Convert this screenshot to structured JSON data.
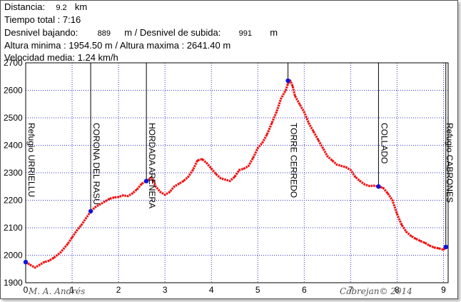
{
  "stats": {
    "distance_label": "Distancia:",
    "distance_value": "9.2",
    "distance_unit": "km",
    "time_text": "Tiempo total : 7:16",
    "desnivel_bajando_label": "Desnivel bajando:",
    "desnivel_bajando_value": "889",
    "desnivel_subida_label": "m / Desnivel de subida:",
    "desnivel_subida_value": "991",
    "desnivel_subida_unit": "m",
    "altitude_text": "Altura minima : 1954.50 m / Altura maxima : 2641.40 m",
    "speed_text": "Velocidad media: 1.24 km/h"
  },
  "credits": {
    "left": "M. A. Andrés",
    "right": "Cabrejan© 2014"
  },
  "colors": {
    "profile": "#ee1111",
    "waypoint": "#1111dd",
    "grid": "#3333cc",
    "axis": "#000000"
  },
  "chart_data": {
    "type": "line",
    "xlim": [
      0,
      9.1
    ],
    "ylim": [
      1900,
      2700
    ],
    "xticks": [
      0,
      1,
      2,
      3,
      4,
      5,
      6,
      7,
      8,
      9
    ],
    "yticks": [
      1900,
      2000,
      2100,
      2200,
      2300,
      2400,
      2500,
      2600,
      2700
    ],
    "grid": true,
    "series": [
      {
        "x": [
          0,
          0.1,
          0.2,
          0.3,
          0.4,
          0.5,
          0.6,
          0.75,
          0.9,
          1.0,
          1.1,
          1.2,
          1.3,
          1.4,
          1.5,
          1.6,
          1.7,
          1.8,
          1.9,
          2.0,
          2.1,
          2.2,
          2.3,
          2.4,
          2.5,
          2.6,
          2.65,
          2.7,
          2.75,
          2.8,
          2.9,
          3.0,
          3.1,
          3.2,
          3.3,
          3.4,
          3.5,
          3.6,
          3.7,
          3.8,
          3.9,
          4.0,
          4.1,
          4.2,
          4.3,
          4.4,
          4.5,
          4.6,
          4.7,
          4.8,
          4.9,
          5.0,
          5.1,
          5.2,
          5.3,
          5.4,
          5.5,
          5.6,
          5.65,
          5.7,
          5.75,
          5.8,
          5.9,
          6.0,
          6.1,
          6.2,
          6.3,
          6.4,
          6.5,
          6.6,
          6.7,
          6.8,
          6.9,
          7.0,
          7.1,
          7.2,
          7.3,
          7.4,
          7.5,
          7.6,
          7.7,
          7.8,
          7.9,
          8.0,
          8.1,
          8.2,
          8.3,
          8.4,
          8.5,
          8.6,
          8.7,
          8.8,
          8.9,
          9.0,
          9.05
        ],
        "y": [
          1975,
          1965,
          1955,
          1965,
          1975,
          1980,
          1990,
          2010,
          2040,
          2065,
          2090,
          2110,
          2135,
          2160,
          2175,
          2185,
          2195,
          2205,
          2210,
          2212,
          2218,
          2215,
          2225,
          2240,
          2260,
          2270,
          2275,
          2282,
          2270,
          2250,
          2230,
          2220,
          2230,
          2250,
          2260,
          2270,
          2285,
          2310,
          2345,
          2350,
          2335,
          2315,
          2295,
          2280,
          2275,
          2270,
          2285,
          2310,
          2315,
          2325,
          2355,
          2390,
          2410,
          2440,
          2480,
          2520,
          2570,
          2600,
          2625,
          2635,
          2615,
          2580,
          2550,
          2520,
          2480,
          2450,
          2420,
          2390,
          2360,
          2345,
          2330,
          2325,
          2320,
          2310,
          2285,
          2270,
          2258,
          2252,
          2253,
          2250,
          2245,
          2225,
          2200,
          2150,
          2110,
          2085,
          2070,
          2060,
          2052,
          2045,
          2035,
          2028,
          2025,
          2020,
          2030
        ]
      }
    ],
    "waypoints": [
      {
        "name": "Refugio URRIELLU",
        "x": 0,
        "y": 1975
      },
      {
        "name": "CORONA DEL RASU",
        "x": 1.4,
        "y": 2160
      },
      {
        "name": "HORDADA ARENERA",
        "x": 2.6,
        "y": 2270
      },
      {
        "name": "TORRE CERREDO",
        "x": 5.65,
        "y": 2635
      },
      {
        "name": "COLLADO",
        "x": 7.6,
        "y": 2250
      },
      {
        "name": "Refugio CABRONES",
        "x": 9.05,
        "y": 2030
      }
    ]
  }
}
